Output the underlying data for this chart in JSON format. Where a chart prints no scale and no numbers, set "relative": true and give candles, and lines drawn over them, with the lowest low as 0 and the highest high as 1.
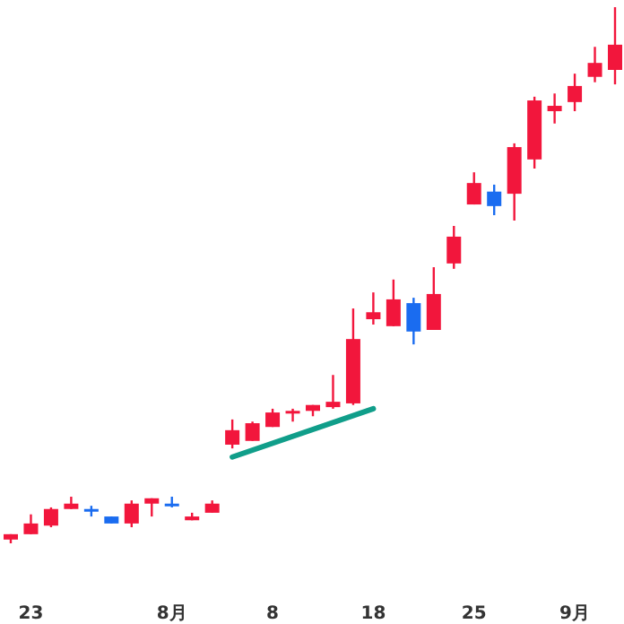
{
  "chart_data": {
    "type": "candlestick",
    "relative": true,
    "categories": [
      null,
      "23",
      null,
      null,
      null,
      null,
      null,
      null,
      "8月",
      null,
      null,
      null,
      null,
      "8",
      null,
      null,
      null,
      null,
      "18",
      null,
      null,
      null,
      null,
      "25",
      null,
      null,
      null,
      null,
      "9月",
      null,
      null
    ],
    "ohlc": [
      [
        0.007,
        0.017,
        0,
        0.017
      ],
      [
        0.017,
        0.054,
        0.017,
        0.037
      ],
      [
        0.033,
        0.067,
        0.03,
        0.064
      ],
      [
        0.064,
        0.087,
        0.064,
        0.074
      ],
      [
        0.064,
        0.07,
        0.05,
        0.06
      ],
      [
        0.05,
        0.05,
        0.037,
        0.037
      ],
      [
        0.037,
        0.08,
        0.03,
        0.074
      ],
      [
        0.074,
        0.084,
        0.05,
        0.084
      ],
      [
        0.074,
        0.087,
        0.067,
        0.07
      ],
      [
        0.043,
        0.057,
        0.043,
        0.05
      ],
      [
        0.057,
        0.08,
        0.057,
        0.074
      ],
      [
        0.184,
        0.231,
        0.177,
        0.211
      ],
      [
        0.191,
        0.227,
        0.191,
        0.224
      ],
      [
        0.217,
        0.251,
        0.217,
        0.244
      ],
      [
        0.244,
        0.251,
        0.227,
        0.247
      ],
      [
        0.247,
        0.258,
        0.237,
        0.258
      ],
      [
        0.254,
        0.314,
        0.251,
        0.264
      ],
      [
        0.261,
        0.438,
        0.258,
        0.381
      ],
      [
        0.418,
        0.468,
        0.408,
        0.431
      ],
      [
        0.405,
        0.492,
        0.405,
        0.455
      ],
      [
        0.448,
        0.458,
        0.371,
        0.395
      ],
      [
        0.398,
        0.515,
        0.398,
        0.465
      ],
      [
        0.522,
        0.592,
        0.512,
        0.572
      ],
      [
        0.632,
        0.692,
        0.632,
        0.672
      ],
      [
        0.656,
        0.669,
        0.612,
        0.629
      ],
      [
        0.652,
        0.746,
        0.602,
        0.739
      ],
      [
        0.716,
        0.833,
        0.699,
        0.826
      ],
      [
        0.806,
        0.839,
        0.783,
        0.816
      ],
      [
        0.823,
        0.876,
        0.806,
        0.853
      ],
      [
        0.87,
        0.926,
        0.86,
        0.896
      ],
      [
        0.883,
        1,
        0.856,
        0.93
      ]
    ],
    "colors": [
      "#f2163c",
      "#f2163c",
      "#f2163c",
      "#f2163c",
      "#1a6cf0",
      "#1a6cf0",
      "#f2163c",
      "#f2163c",
      "#1a6cf0",
      "#f2163c",
      "#f2163c",
      "#f2163c",
      "#f2163c",
      "#f2163c",
      "#f2163c",
      "#f2163c",
      "#f2163c",
      "#f2163c",
      "#f2163c",
      "#f2163c",
      "#1a6cf0",
      "#f2163c",
      "#f2163c",
      "#f2163c",
      "#1a6cf0",
      "#f2163c",
      "#f2163c",
      "#f2163c",
      "#f2163c",
      "#f2163c",
      "#f2163c"
    ],
    "series": [
      {
        "type": "line",
        "color": "#109e8a",
        "values": [
          null,
          null,
          null,
          null,
          null,
          null,
          null,
          null,
          null,
          null,
          null,
          0.161,
          null,
          null,
          null,
          null,
          null,
          null,
          0.251,
          null,
          null,
          null,
          null,
          null,
          null,
          null,
          null,
          null,
          null,
          null,
          null
        ]
      }
    ]
  }
}
